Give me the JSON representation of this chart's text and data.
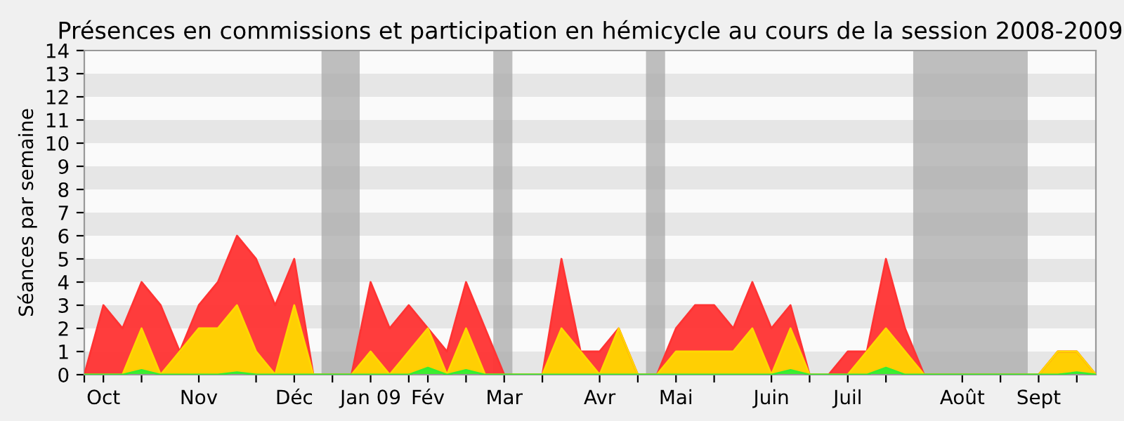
{
  "chart_data": {
    "type": "area",
    "title": "Présences en commissions et participation en hémicycle au cours de la session 2008-2009",
    "ylabel": "Séances par semaine",
    "x": [
      "2008-09-29",
      "2008-10-06",
      "2008-10-13",
      "2008-10-20",
      "2008-10-27",
      "2008-11-03",
      "2008-11-10",
      "2008-11-17",
      "2008-11-24",
      "2008-12-01",
      "2008-12-08",
      "2008-12-15",
      "2008-12-22",
      "2008-12-29",
      "2009-01-05",
      "2009-01-12",
      "2009-01-19",
      "2009-01-26",
      "2009-02-02",
      "2009-02-09",
      "2009-02-16",
      "2009-02-23",
      "2009-03-02",
      "2009-03-09",
      "2009-03-16",
      "2009-03-23",
      "2009-03-30",
      "2009-04-06",
      "2009-04-13",
      "2009-04-20",
      "2009-04-27",
      "2009-05-04",
      "2009-05-11",
      "2009-05-18",
      "2009-05-25",
      "2009-06-01",
      "2009-06-08",
      "2009-06-15",
      "2009-06-22",
      "2009-06-29",
      "2009-07-06",
      "2009-07-13",
      "2009-07-20",
      "2009-07-27",
      "2009-08-03",
      "2009-08-10",
      "2009-08-17",
      "2009-08-24",
      "2009-08-31",
      "2009-09-07",
      "2009-09-14",
      "2009-09-21",
      "2009-09-28",
      "2009-10-05"
    ],
    "series": [
      {
        "color": "#ff3333",
        "values": [
          0,
          3,
          2,
          4,
          3,
          1,
          3,
          4,
          6,
          5,
          3,
          5,
          0,
          0,
          0,
          4,
          2,
          3,
          2,
          1,
          4,
          2,
          0,
          0,
          0,
          5,
          1,
          1,
          2,
          0,
          0,
          2,
          3,
          3,
          2,
          4,
          2,
          3,
          0,
          0,
          1,
          1,
          5,
          2,
          0,
          0,
          0,
          0,
          0,
          0,
          0,
          1,
          1,
          0
        ]
      },
      {
        "color": "#ffd700",
        "values": [
          0,
          0,
          0,
          2,
          0,
          1,
          2,
          2,
          3,
          1,
          0,
          3,
          0,
          0,
          0,
          1,
          0,
          1,
          2,
          0,
          2,
          0,
          0,
          0,
          0,
          2,
          1,
          0,
          2,
          0,
          0,
          1,
          1,
          1,
          1,
          2,
          0,
          2,
          0,
          0,
          0,
          1,
          2,
          1,
          0,
          0,
          0,
          0,
          0,
          0,
          0,
          1,
          1,
          0
        ]
      },
      {
        "color": "#33ee33",
        "values": [
          0,
          0,
          0,
          0.2,
          0,
          0,
          0,
          0,
          0.1,
          0,
          0,
          0,
          0,
          0,
          0,
          0,
          0,
          0,
          0.3,
          0,
          0.2,
          0,
          0,
          0,
          0,
          0,
          0,
          0,
          0,
          0,
          0,
          0,
          0,
          0,
          0,
          0,
          0,
          0.2,
          0,
          0,
          0,
          0,
          0.3,
          0,
          0,
          0,
          0,
          0,
          0,
          0,
          0,
          0,
          0.1,
          0
        ]
      }
    ],
    "bands": [
      {
        "axis": "x",
        "from": "2008-12-25",
        "to": "2009-01-08",
        "color": "#aaaaaa"
      },
      {
        "axis": "x",
        "from": "2009-02-26",
        "to": "2009-03-05",
        "color": "#aaaaaa"
      },
      {
        "axis": "x",
        "from": "2009-04-23",
        "to": "2009-04-30",
        "color": "#aaaaaa"
      },
      {
        "axis": "x",
        "from": "2009-07-30",
        "to": "2009-09-10",
        "color": "#aaaaaa"
      }
    ],
    "xlim": [
      "2008-09-29",
      "2009-10-05"
    ],
    "xticks": [
      {
        "value": "2008-09-29",
        "label": null
      },
      {
        "value": "2008-10-06",
        "label": "Oct"
      },
      {
        "value": "2008-10-20",
        "label": null
      },
      {
        "value": "2008-11-10",
        "label": "Nov"
      },
      {
        "value": "2008-12-01",
        "label": null
      },
      {
        "value": "2008-12-15",
        "label": "Déc"
      },
      {
        "value": "2008-12-29",
        "label": null
      },
      {
        "value": "2009-01-12",
        "label": "Jan 09"
      },
      {
        "value": "2009-01-26",
        "label": null
      },
      {
        "value": "2009-02-02",
        "label": "Fév"
      },
      {
        "value": "2009-02-16",
        "label": null
      },
      {
        "value": "2009-03-02",
        "label": "Mar"
      },
      {
        "value": "2009-03-16",
        "label": null
      },
      {
        "value": "2009-04-06",
        "label": "Avr"
      },
      {
        "value": "2009-04-20",
        "label": null
      },
      {
        "value": "2009-05-04",
        "label": "Mai"
      },
      {
        "value": "2009-05-18",
        "label": null
      },
      {
        "value": "2009-06-08",
        "label": "Juin"
      },
      {
        "value": "2009-06-22",
        "label": null
      },
      {
        "value": "2009-07-06",
        "label": "Juil"
      },
      {
        "value": "2009-07-20",
        "label": null
      },
      {
        "value": "2009-08-17",
        "label": "Août"
      },
      {
        "value": "2009-08-31",
        "label": null
      },
      {
        "value": "2009-09-14",
        "label": "Sept"
      },
      {
        "value": "2009-09-28",
        "label": null
      }
    ],
    "ylim": [
      0,
      14
    ],
    "yticks": [
      0,
      1,
      2,
      3,
      4,
      5,
      6,
      7,
      8,
      9,
      10,
      11,
      12,
      13,
      14
    ]
  }
}
